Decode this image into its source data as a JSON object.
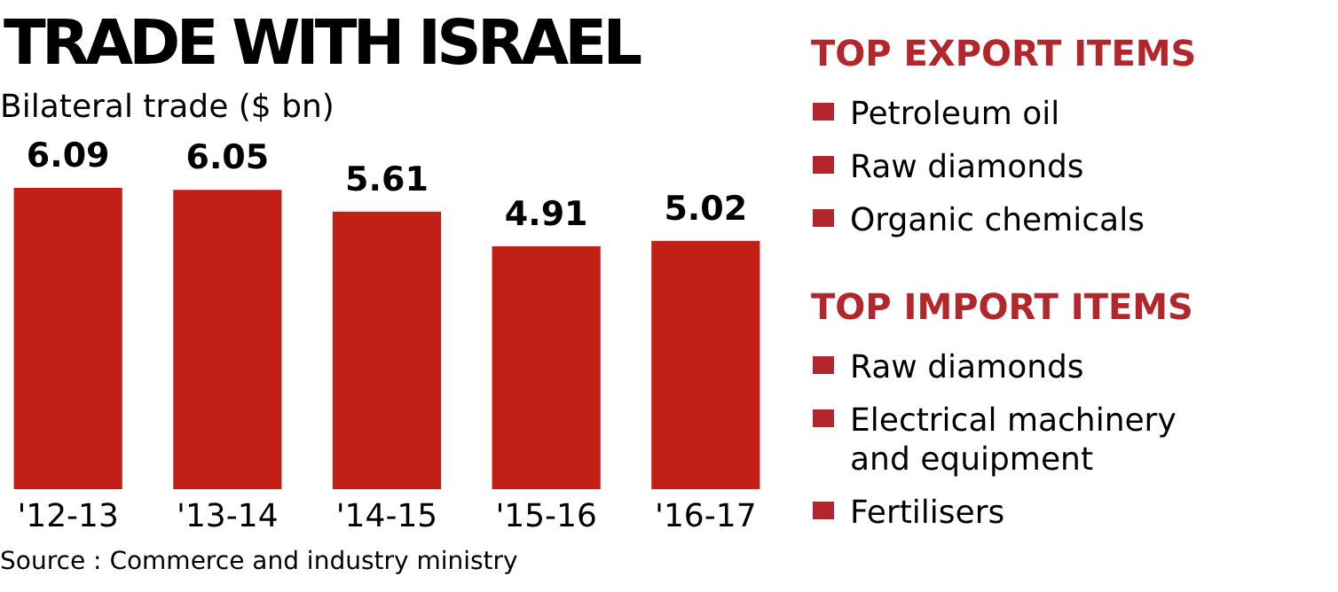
{
  "chart_data": [
    {
      "type": "bar",
      "title": "TRADE WITH ISRAEL",
      "subtitle": "Bilateral trade ($ bn)",
      "categories": [
        "'12-13",
        "'13-14",
        "'14-15",
        "'15-16",
        "'16-17"
      ],
      "values": [
        6.09,
        6.05,
        5.61,
        4.91,
        5.02
      ],
      "color": "#c21f16",
      "data_labels": true,
      "annotations": [
        "Source : Commerce and industry ministry"
      ]
    },
    {
      "type": "other",
      "title": "TOP EXPORT ITEMS",
      "color": "#b3262b",
      "categories": [
        "Petroleum oil",
        "Raw diamonds",
        "Organic chemicals"
      ]
    },
    {
      "type": "other",
      "title": "TOP IMPORT ITEMS",
      "color": "#b3262b",
      "categories": [
        "Raw diamonds",
        "Electrical machinery and equipment",
        "Fertilisers"
      ]
    }
  ]
}
